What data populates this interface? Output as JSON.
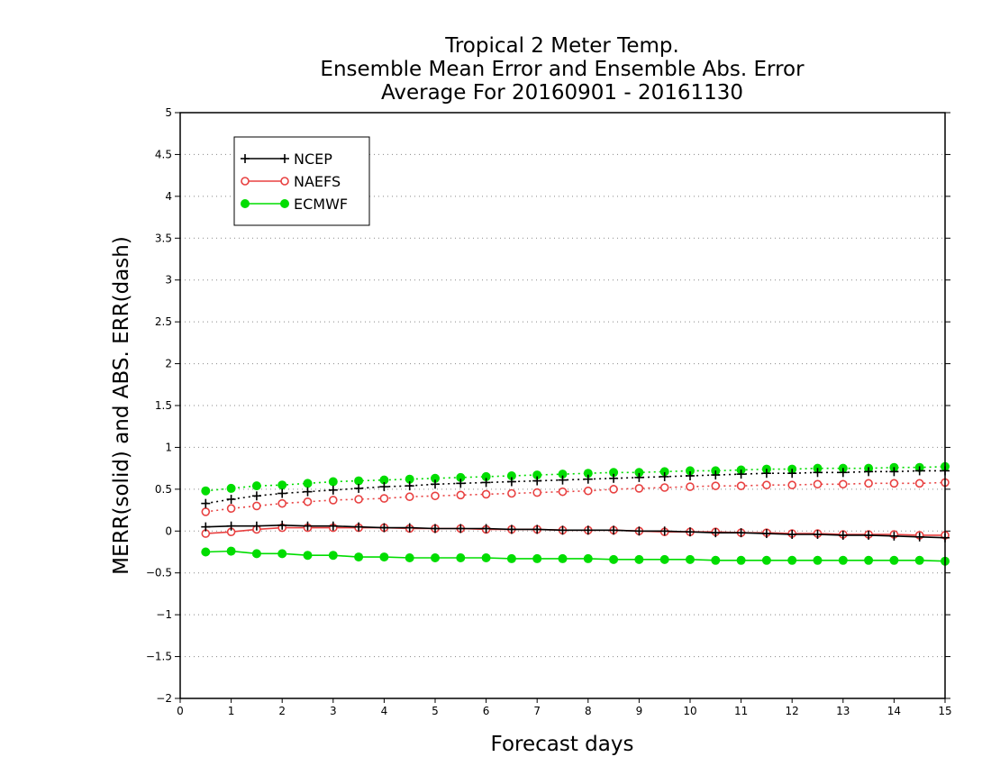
{
  "chart_data": {
    "type": "line",
    "title": [
      "Tropical 2 Meter Temp.",
      "Ensemble Mean Error and Ensemble Abs. Error",
      "Average For 20160901 - 20161130"
    ],
    "xlabel": "Forecast days",
    "ylabel": "MERR(solid) and ABS. ERR(dash)",
    "xlim": [
      0,
      15
    ],
    "ylim": [
      -2,
      5
    ],
    "x_ticks": [
      0,
      1,
      2,
      3,
      4,
      5,
      6,
      7,
      8,
      9,
      10,
      11,
      12,
      13,
      14,
      15
    ],
    "y_ticks": [
      -2,
      -1.5,
      -1,
      -0.5,
      0,
      0.5,
      1,
      1.5,
      2,
      2.5,
      3,
      3.5,
      4,
      4.5,
      5
    ],
    "x_tick_labels": [
      "0",
      "1",
      "2",
      "3",
      "4",
      "5",
      "6",
      "7",
      "8",
      "9",
      "10",
      "11",
      "12",
      "13",
      "14",
      "15"
    ],
    "y_tick_labels": [
      "−2",
      "−1.5",
      "−1",
      "−0.5",
      "0",
      "0.5",
      "1",
      "1.5",
      "2",
      "2.5",
      "3",
      "3.5",
      "4",
      "4.5",
      "5"
    ],
    "grid": "horizontal dotted",
    "legend_position": "top-left",
    "x": [
      0.5,
      1,
      1.5,
      2,
      2.5,
      3,
      3.5,
      4,
      4.5,
      5,
      5.5,
      6,
      6.5,
      7,
      7.5,
      8,
      8.5,
      9,
      9.5,
      10,
      10.5,
      11,
      11.5,
      12,
      12.5,
      13,
      13.5,
      14,
      14.5,
      15
    ],
    "series": [
      {
        "name": "NCEP",
        "color": "#000000",
        "marker": "plus",
        "mean_error": [
          0.05,
          0.06,
          0.06,
          0.07,
          0.06,
          0.06,
          0.05,
          0.04,
          0.04,
          0.03,
          0.03,
          0.03,
          0.02,
          0.02,
          0.01,
          0.01,
          0.01,
          0.0,
          0.0,
          -0.01,
          -0.02,
          -0.02,
          -0.03,
          -0.04,
          -0.04,
          -0.05,
          -0.05,
          -0.06,
          -0.07,
          -0.08
        ],
        "abs_error": [
          0.33,
          0.38,
          0.42,
          0.45,
          0.47,
          0.49,
          0.51,
          0.53,
          0.54,
          0.56,
          0.57,
          0.58,
          0.59,
          0.6,
          0.61,
          0.62,
          0.63,
          0.64,
          0.65,
          0.66,
          0.67,
          0.68,
          0.69,
          0.69,
          0.7,
          0.7,
          0.71,
          0.71,
          0.72,
          0.72
        ]
      },
      {
        "name": "NAEFS",
        "color": "#e84040",
        "marker": "open-circle",
        "mean_error": [
          -0.03,
          -0.01,
          0.02,
          0.04,
          0.04,
          0.04,
          0.04,
          0.04,
          0.03,
          0.03,
          0.03,
          0.02,
          0.02,
          0.02,
          0.01,
          0.01,
          0.01,
          0.0,
          -0.01,
          -0.01,
          -0.01,
          -0.02,
          -0.02,
          -0.03,
          -0.03,
          -0.04,
          -0.04,
          -0.04,
          -0.05,
          -0.05
        ],
        "abs_error": [
          0.23,
          0.27,
          0.3,
          0.33,
          0.35,
          0.37,
          0.38,
          0.39,
          0.41,
          0.42,
          0.43,
          0.44,
          0.45,
          0.46,
          0.47,
          0.48,
          0.5,
          0.51,
          0.52,
          0.53,
          0.54,
          0.54,
          0.55,
          0.55,
          0.56,
          0.56,
          0.57,
          0.57,
          0.57,
          0.58
        ]
      },
      {
        "name": "ECMWF",
        "color": "#00dd00",
        "marker": "filled-circle",
        "mean_error": [
          -0.25,
          -0.24,
          -0.27,
          -0.27,
          -0.29,
          -0.29,
          -0.31,
          -0.31,
          -0.32,
          -0.32,
          -0.32,
          -0.32,
          -0.33,
          -0.33,
          -0.33,
          -0.33,
          -0.34,
          -0.34,
          -0.34,
          -0.34,
          -0.35,
          -0.35,
          -0.35,
          -0.35,
          -0.35,
          -0.35,
          -0.35,
          -0.35,
          -0.35,
          -0.36
        ],
        "abs_error": [
          0.48,
          0.51,
          0.54,
          0.55,
          0.57,
          0.59,
          0.6,
          0.61,
          0.62,
          0.63,
          0.64,
          0.65,
          0.66,
          0.67,
          0.68,
          0.69,
          0.7,
          0.7,
          0.71,
          0.72,
          0.72,
          0.73,
          0.74,
          0.74,
          0.75,
          0.75,
          0.75,
          0.76,
          0.76,
          0.77
        ]
      }
    ]
  }
}
